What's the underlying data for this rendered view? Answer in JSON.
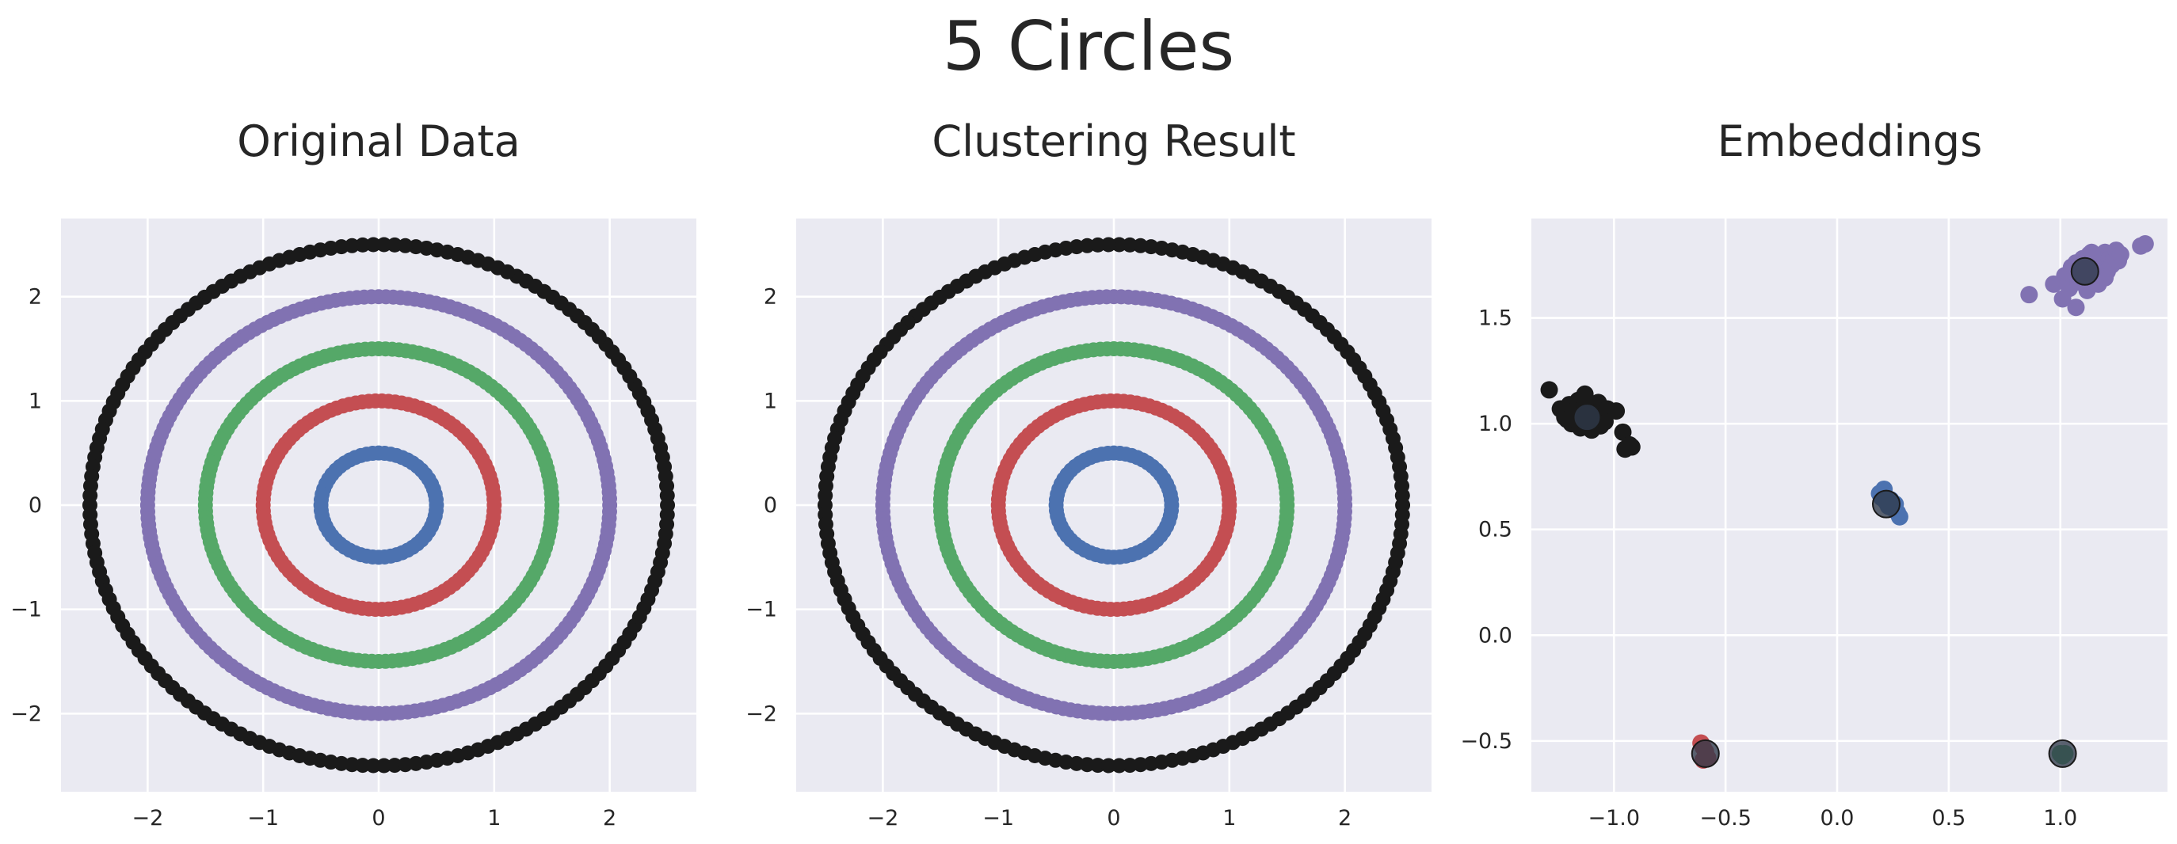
{
  "figure": {
    "title": "5 Circles",
    "colors": {
      "background": "#ffffff",
      "panel": "#eaeaf2",
      "grid": "#ffffff",
      "text": "#262626"
    }
  },
  "chart_data": [
    {
      "type": "scatter",
      "title": "Original Data",
      "xlabel": "",
      "ylabel": "",
      "xlim": [
        -2.75,
        2.75
      ],
      "ylim": [
        -2.75,
        2.75
      ],
      "xticks": [
        -2,
        -1,
        0,
        1,
        2
      ],
      "yticks": [
        -2,
        -1,
        0,
        1,
        2
      ],
      "xtick_labels": [
        "−2",
        "−1",
        "0",
        "1",
        "2"
      ],
      "ytick_labels": [
        "−2",
        "−1",
        "0",
        "1",
        "2"
      ],
      "grid": true,
      "series": [
        {
          "shape": "ring",
          "center": [
            0,
            0
          ],
          "radius": 0.5,
          "color": "#4c72b0"
        },
        {
          "shape": "ring",
          "center": [
            0,
            0
          ],
          "radius": 1.0,
          "color": "#c44e52"
        },
        {
          "shape": "ring",
          "center": [
            0,
            0
          ],
          "radius": 1.5,
          "color": "#55a868"
        },
        {
          "shape": "ring",
          "center": [
            0,
            0
          ],
          "radius": 2.0,
          "color": "#8172b2"
        },
        {
          "shape": "ring",
          "center": [
            0,
            0
          ],
          "radius": 2.5,
          "color": "#1a1a1a"
        }
      ]
    },
    {
      "type": "scatter",
      "title": "Clustering Result",
      "xlabel": "",
      "ylabel": "",
      "xlim": [
        -2.75,
        2.75
      ],
      "ylim": [
        -2.75,
        2.75
      ],
      "xticks": [
        -2,
        -1,
        0,
        1,
        2
      ],
      "yticks": [
        -2,
        -1,
        0,
        1,
        2
      ],
      "xtick_labels": [
        "−2",
        "−1",
        "0",
        "1",
        "2"
      ],
      "ytick_labels": [
        "−2",
        "−1",
        "0",
        "1",
        "2"
      ],
      "grid": true,
      "series": [
        {
          "shape": "ring",
          "center": [
            0,
            0
          ],
          "radius": 0.5,
          "color": "#4c72b0"
        },
        {
          "shape": "ring",
          "center": [
            0,
            0
          ],
          "radius": 1.0,
          "color": "#c44e52"
        },
        {
          "shape": "ring",
          "center": [
            0,
            0
          ],
          "radius": 1.5,
          "color": "#55a868"
        },
        {
          "shape": "ring",
          "center": [
            0,
            0
          ],
          "radius": 2.0,
          "color": "#8172b2"
        },
        {
          "shape": "ring",
          "center": [
            0,
            0
          ],
          "radius": 2.5,
          "color": "#1a1a1a"
        }
      ]
    },
    {
      "type": "scatter",
      "title": "Embeddings",
      "xlabel": "",
      "ylabel": "",
      "xlim": [
        -1.37,
        1.48
      ],
      "ylim": [
        -0.74,
        1.97
      ],
      "xticks": [
        -1.0,
        -0.5,
        0.0,
        0.5,
        1.0
      ],
      "yticks": [
        -0.5,
        0.0,
        0.5,
        1.0,
        1.5
      ],
      "xtick_labels": [
        "−1.0",
        "−0.5",
        "0.0",
        "0.5",
        "1.0"
      ],
      "ytick_labels": [
        "−0.5",
        "0.0",
        "0.5",
        "1.0",
        "1.5"
      ],
      "grid": true,
      "series": [
        {
          "shape": "points",
          "color": "#8172b2",
          "points": [
            [
              0.86,
              1.61
            ],
            [
              0.97,
              1.66
            ],
            [
              1.02,
              1.7
            ],
            [
              1.05,
              1.74
            ],
            [
              1.07,
              1.76
            ],
            [
              1.09,
              1.72
            ],
            [
              1.1,
              1.78
            ],
            [
              1.11,
              1.69
            ],
            [
              1.12,
              1.75
            ],
            [
              1.13,
              1.8
            ],
            [
              1.14,
              1.71
            ],
            [
              1.15,
              1.77
            ],
            [
              1.16,
              1.73
            ],
            [
              1.17,
              1.79
            ],
            [
              1.18,
              1.74
            ],
            [
              1.19,
              1.76
            ],
            [
              1.2,
              1.81
            ],
            [
              1.21,
              1.72
            ],
            [
              1.22,
              1.78
            ],
            [
              1.23,
              1.75
            ],
            [
              1.24,
              1.79
            ],
            [
              1.25,
              1.82
            ],
            [
              1.26,
              1.77
            ],
            [
              1.04,
              1.64
            ],
            [
              1.08,
              1.67
            ],
            [
              1.12,
              1.63
            ],
            [
              1.17,
              1.66
            ],
            [
              1.2,
              1.69
            ],
            [
              1.01,
              1.59
            ],
            [
              1.07,
              1.55
            ],
            [
              1.36,
              1.84
            ],
            [
              1.38,
              1.85
            ],
            [
              1.27,
              1.8
            ],
            [
              1.14,
              1.81
            ]
          ]
        },
        {
          "shape": "points",
          "color": "#1a1a1a",
          "points": [
            [
              -1.29,
              1.16
            ],
            [
              -1.24,
              1.07
            ],
            [
              -1.22,
              1.03
            ],
            [
              -1.2,
              1.09
            ],
            [
              -1.19,
              1.0
            ],
            [
              -1.17,
              1.05
            ],
            [
              -1.16,
              1.11
            ],
            [
              -1.15,
              0.98
            ],
            [
              -1.14,
              1.04
            ],
            [
              -1.13,
              1.14
            ],
            [
              -1.12,
              1.01
            ],
            [
              -1.11,
              1.07
            ],
            [
              -1.1,
              0.97
            ],
            [
              -1.09,
              1.05
            ],
            [
              -1.08,
              1.02
            ],
            [
              -1.07,
              1.1
            ],
            [
              -1.06,
              0.99
            ],
            [
              -1.05,
              1.04
            ],
            [
              -1.04,
              1.01
            ],
            [
              -1.03,
              1.07
            ],
            [
              -1.18,
              1.06
            ],
            [
              -1.21,
              1.02
            ],
            [
              -1.13,
              1.09
            ],
            [
              -0.99,
              1.06
            ],
            [
              -0.96,
              0.96
            ],
            [
              -0.95,
              0.88
            ],
            [
              -0.93,
              0.9
            ],
            [
              -0.92,
              0.89
            ]
          ]
        },
        {
          "shape": "points",
          "color": "#4c72b0",
          "points": [
            [
              0.19,
              0.67
            ],
            [
              0.21,
              0.69
            ],
            [
              0.22,
              0.63
            ],
            [
              0.23,
              0.61
            ],
            [
              0.24,
              0.64
            ],
            [
              0.25,
              0.6
            ],
            [
              0.26,
              0.62
            ],
            [
              0.27,
              0.58
            ],
            [
              0.28,
              0.56
            ],
            [
              0.2,
              0.65
            ]
          ]
        },
        {
          "shape": "points",
          "color": "#c44e52",
          "points": [
            [
              -0.61,
              -0.51
            ],
            [
              -0.6,
              -0.59
            ],
            [
              -0.59,
              -0.55
            ],
            [
              -0.58,
              -0.58
            ],
            [
              -0.6,
              -0.53
            ]
          ]
        },
        {
          "shape": "points",
          "color": "#55a868",
          "points": [
            [
              1.0,
              -0.56
            ],
            [
              1.01,
              -0.57
            ],
            [
              1.02,
              -0.56
            ]
          ]
        }
      ],
      "centers": {
        "color": "#2f3a4a",
        "points": [
          [
            1.11,
            1.72
          ],
          [
            -1.12,
            1.03
          ],
          [
            0.22,
            0.62
          ],
          [
            -0.59,
            -0.56
          ],
          [
            1.01,
            -0.56
          ]
        ]
      }
    }
  ]
}
